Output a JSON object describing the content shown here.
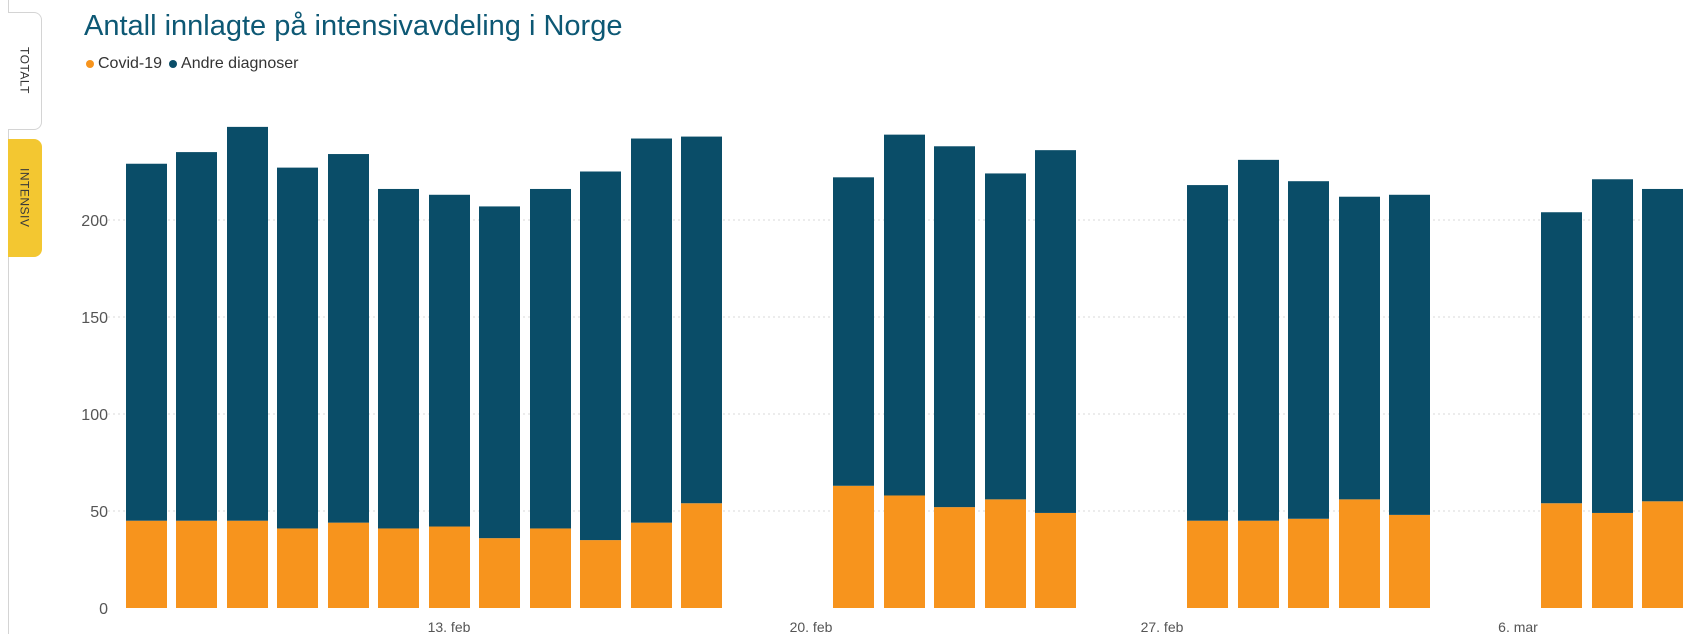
{
  "tabs": [
    {
      "label": "TOTALT",
      "active": false
    },
    {
      "label": "INTENSIV",
      "active": true
    }
  ],
  "colors": {
    "covid": "#f7941d",
    "other": "#0a4d68",
    "title": "#0d5874",
    "active_tab": "#f3c731",
    "grid": "#d9d9d9"
  },
  "chart_data": {
    "type": "bar",
    "stacked": true,
    "title": "Antall innlagte på intensivavdeling i Norge",
    "legend_position": "top-left",
    "grid": "horizontal-dotted",
    "ylim": [
      0,
      250
    ],
    "yticks": [
      "0",
      "50",
      "100",
      "150",
      "200"
    ],
    "x_labels": [
      "13. feb",
      "20. feb",
      "27. feb",
      "6. mar"
    ],
    "legend": [
      {
        "name": "Covid-19",
        "color": "#f7941d"
      },
      {
        "name": "Andre diagnoser",
        "color": "#0a4d68"
      }
    ],
    "series": [
      {
        "name": "Covid-19",
        "values": [
          45,
          45,
          45,
          41,
          44,
          41,
          42,
          36,
          41,
          35,
          44,
          54,
          63,
          58,
          52,
          56,
          49,
          45,
          45,
          46,
          56,
          48,
          54,
          49,
          55
        ]
      },
      {
        "name": "Andre diagnoser",
        "values": [
          184,
          190,
          203,
          186,
          190,
          175,
          171,
          171,
          175,
          190,
          198,
          189,
          159,
          186,
          186,
          168,
          187,
          173,
          186,
          174,
          156,
          165,
          150,
          172,
          161
        ]
      }
    ]
  }
}
